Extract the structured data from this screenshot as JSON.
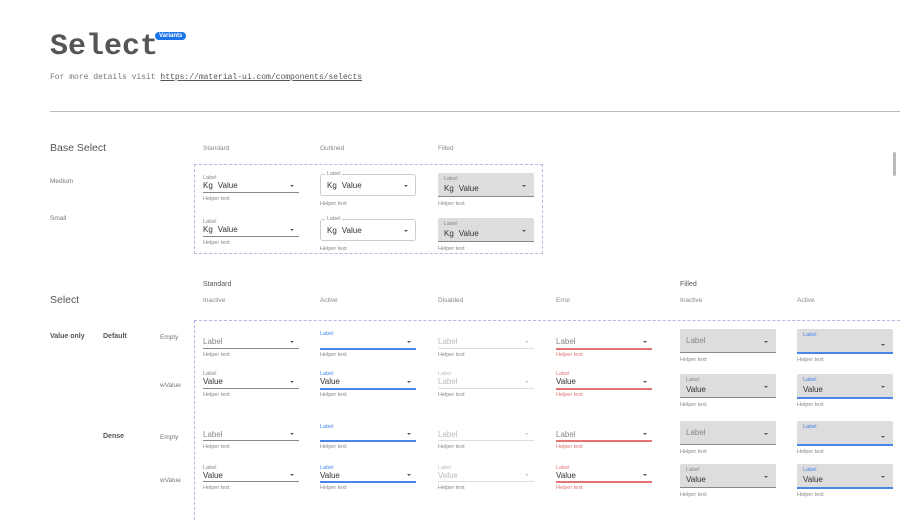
{
  "header": {
    "title": "Select",
    "badge": "Variants",
    "intro": "For more details visit ",
    "link": "https://material-ui.com/components/selects"
  },
  "base": {
    "title": "Base Select",
    "columns": [
      "Standard",
      "Outlined",
      "Filled"
    ],
    "rows": [
      "Medium",
      "Small"
    ]
  },
  "select": {
    "title": "Select",
    "group_standard": "Standard",
    "group_filled": "Filled",
    "columns": [
      "Inactive",
      "Active",
      "Disabled",
      "Error",
      "Inactive",
      "Active"
    ],
    "mode": "Value only",
    "densities": [
      "Default",
      "Dense"
    ],
    "rows": [
      "Empty",
      "wValue",
      "Empty",
      "wValue"
    ]
  },
  "colors": {
    "accent": "#4a86e8",
    "error": "#e57373",
    "badge": "#1a73e8",
    "filled_bg": "#dddddd"
  },
  "fields": [
    {
      "variant": "standard",
      "state": "inactive",
      "label": "Label",
      "value": "Value",
      "adornment": "Kg",
      "helper": "Helper text"
    },
    {
      "variant": "outlined",
      "state": "inactive",
      "label": "Label",
      "value": "Value",
      "adornment": "Kg",
      "helper": "Helper text"
    },
    {
      "variant": "filled",
      "state": "inactive",
      "label": "Label",
      "value": "Value",
      "adornment": "Kg",
      "helper": "Helper text"
    },
    {
      "variant": "standard",
      "state": "inactive",
      "label": "Label",
      "value": "Value",
      "adornment": "Kg",
      "helper": "Helper text"
    },
    {
      "variant": "outlined",
      "state": "inactive",
      "label": "Label",
      "value": "Value",
      "adornment": "Kg",
      "helper": "Helper text"
    },
    {
      "variant": "filled",
      "state": "inactive",
      "label": "Label",
      "value": "Value",
      "adornment": "Kg",
      "helper": "Helper text"
    },
    {
      "variant": "standard",
      "state": "inactive",
      "label": "Label",
      "value": "",
      "helper": "Helper text"
    },
    {
      "variant": "standard",
      "state": "active",
      "label": "Label",
      "value": "",
      "helper": "Helper text"
    },
    {
      "variant": "standard",
      "state": "disabled",
      "label": "Label",
      "value": "",
      "helper": "Helper text"
    },
    {
      "variant": "standard",
      "state": "error",
      "label": "Label",
      "value": "",
      "helper": "Helper text"
    },
    {
      "variant": "filled",
      "state": "inactive",
      "label": "Label",
      "value": "",
      "helper": "Helper text"
    },
    {
      "variant": "filled",
      "state": "active",
      "label": "Label",
      "value": "",
      "helper": "Helper text"
    },
    {
      "variant": "standard",
      "state": "inactive",
      "label": "Label",
      "value": "Value",
      "helper": "Helper text"
    },
    {
      "variant": "standard",
      "state": "active",
      "label": "Label",
      "value": "Value",
      "helper": "Helper text"
    },
    {
      "variant": "standard",
      "state": "disabled",
      "label": "Label",
      "value": "Label",
      "helper": "Helper text"
    },
    {
      "variant": "standard",
      "state": "error",
      "label": "Label",
      "value": "Value",
      "helper": "Helper text"
    },
    {
      "variant": "filled",
      "state": "inactive",
      "label": "Label",
      "value": "Value",
      "helper": "Helper text"
    },
    {
      "variant": "filled",
      "state": "active",
      "label": "Label",
      "value": "Value",
      "helper": "Helper text"
    },
    {
      "variant": "standard",
      "state": "inactive",
      "label": "Label",
      "value": "",
      "helper": "Helper text"
    },
    {
      "variant": "standard",
      "state": "active",
      "label": "Label",
      "value": "",
      "helper": "Helper text"
    },
    {
      "variant": "standard",
      "state": "disabled",
      "label": "Label",
      "value": "",
      "helper": "Helper text"
    },
    {
      "variant": "standard",
      "state": "error",
      "label": "Label",
      "value": "",
      "helper": "Helper text"
    },
    {
      "variant": "filled",
      "state": "inactive",
      "label": "Label",
      "value": "",
      "helper": "Helper text"
    },
    {
      "variant": "filled",
      "state": "active",
      "label": "Label",
      "value": "",
      "helper": "Helper text"
    },
    {
      "variant": "standard",
      "state": "inactive",
      "label": "Label",
      "value": "Value",
      "helper": "Helper text"
    },
    {
      "variant": "standard",
      "state": "active",
      "label": "Label",
      "value": "Value",
      "helper": "Helper text"
    },
    {
      "variant": "standard",
      "state": "disabled",
      "label": "Label",
      "value": "Value",
      "helper": "Helper text"
    },
    {
      "variant": "standard",
      "state": "error",
      "label": "Label",
      "value": "Value",
      "helper": "Helper text"
    },
    {
      "variant": "filled",
      "state": "inactive",
      "label": "Label",
      "value": "Value",
      "helper": "Helper text"
    },
    {
      "variant": "filled",
      "state": "active",
      "label": "Label",
      "value": "Value",
      "helper": "Helper text"
    }
  ]
}
